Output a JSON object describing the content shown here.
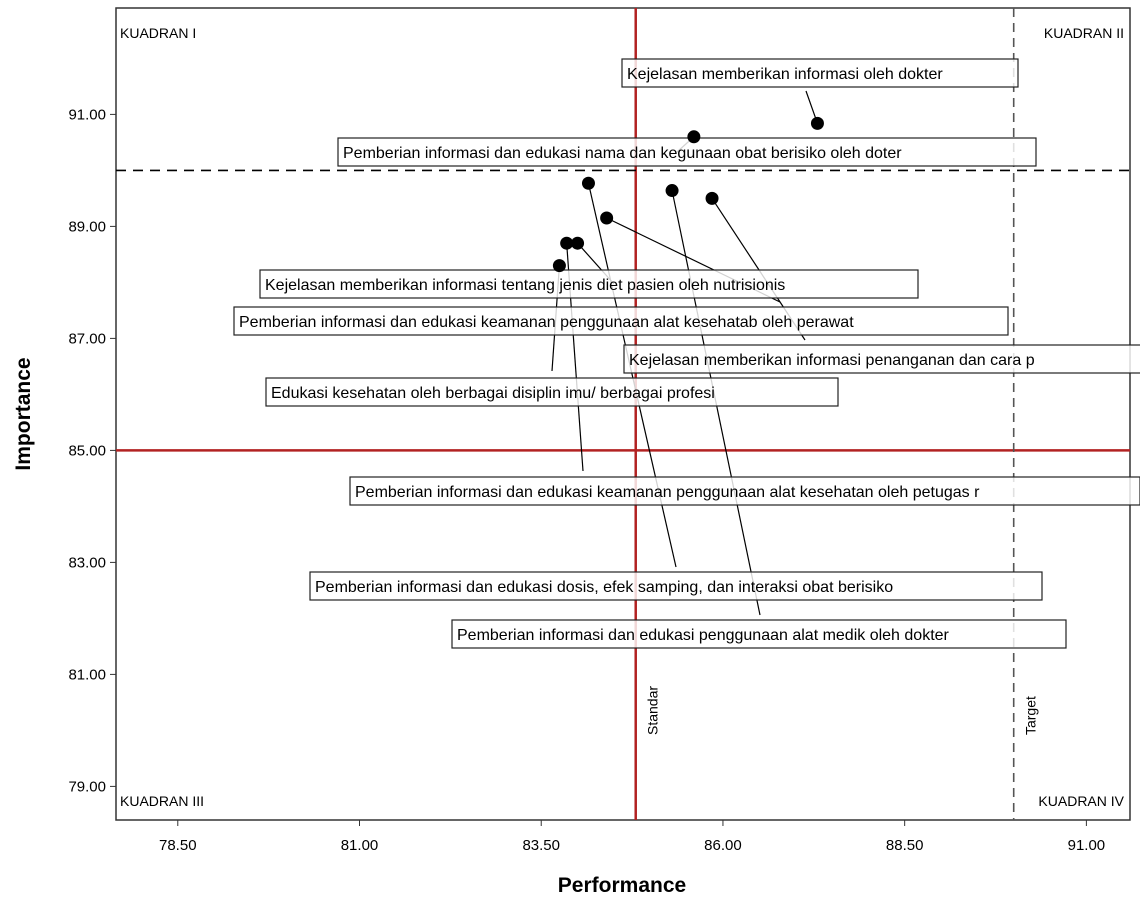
{
  "chart_data": {
    "type": "scatter",
    "xlabel": "Performance",
    "ylabel": "Importance",
    "xlim": [
      77.65,
      91.6
    ],
    "ylim": [
      78.4,
      92.9
    ],
    "x_ticks": [
      "78.50",
      "81.00",
      "83.50",
      "86.00",
      "88.50",
      "91.00"
    ],
    "y_ticks": [
      "79.00",
      "81.00",
      "83.00",
      "85.00",
      "87.00",
      "89.00",
      "91.00"
    ],
    "grid": false,
    "quadrant_labels": {
      "top_left": "KUADRAN I",
      "top_right": "KUADRAN II",
      "bottom_left": "KUADRAN III",
      "bottom_right": "KUADRAN IV"
    },
    "reference_lines": [
      {
        "axis": "x",
        "value": 84.8,
        "label": "Standar",
        "color": "#b22222",
        "style": "solid"
      },
      {
        "axis": "y",
        "value": 85.0,
        "label": "",
        "color": "#b22222",
        "style": "solid"
      },
      {
        "axis": "x",
        "value": 90.0,
        "label": "Target",
        "color": "#555555",
        "style": "dashed"
      },
      {
        "axis": "y",
        "value": 90.0,
        "label": "",
        "color": "#000000",
        "style": "dashed"
      }
    ],
    "points": [
      {
        "x": 87.3,
        "y": 90.84,
        "label": "Kejelasan memberikan informasi oleh dokter"
      },
      {
        "x": 85.6,
        "y": 90.6,
        "label": "Pemberian informasi dan edukasi nama dan kegunaan obat berisiko oleh doter"
      },
      {
        "x": 84.0,
        "y": 88.7,
        "label": "Kejelasan memberikan informasi tentang jenis diet pasien oleh nutrisionis"
      },
      {
        "x": 84.4,
        "y": 89.15,
        "label": "Pemberian informasi dan edukasi keamanan penggunaan alat kesehatab oleh perawat"
      },
      {
        "x": 85.85,
        "y": 89.5,
        "label": "Kejelasan memberikan informasi penanganan dan cara p"
      },
      {
        "x": 83.75,
        "y": 88.3,
        "label": "Edukasi kesehatan oleh berbagai disiplin imu/ berbagai profesi"
      },
      {
        "x": 83.85,
        "y": 88.7,
        "label": "Pemberian informasi dan edukasi keamanan penggunaan alat kesehatan oleh petugas r"
      },
      {
        "x": 84.15,
        "y": 89.77,
        "label": "Pemberian informasi dan edukasi dosis, efek samping, dan interaksi obat berisiko"
      },
      {
        "x": 85.3,
        "y": 89.64,
        "label": "Pemberian informasi dan edukasi penggunaan alat medik oleh dokter"
      }
    ]
  }
}
